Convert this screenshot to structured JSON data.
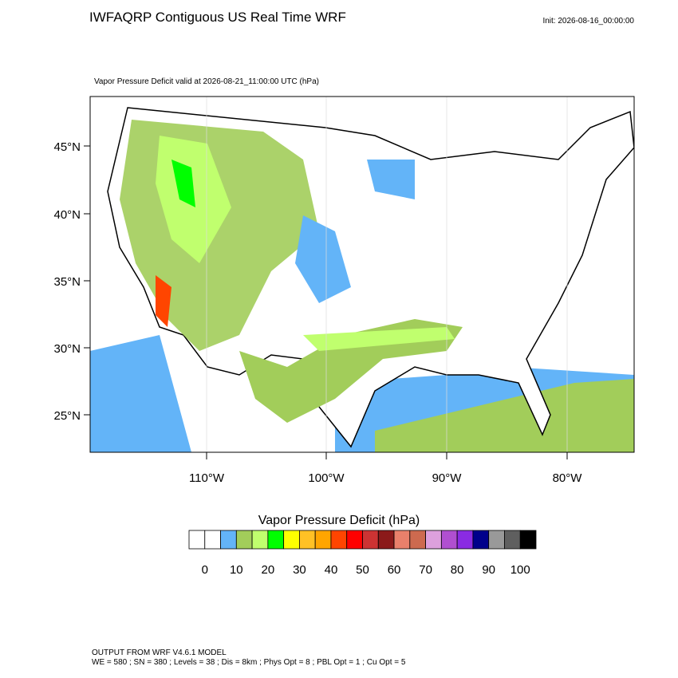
{
  "header": {
    "title": "IWFAQRP Contiguous US Real Time WRF",
    "init": "Init: 2026-08-16_00:00:00"
  },
  "map": {
    "subtitle": "Vapor Pressure Deficit valid at 2026-08-21_11:00:00 UTC   (hPa)",
    "lat_labels": [
      "45°N",
      "40°N",
      "35°N",
      "30°N",
      "25°N"
    ],
    "lon_labels": [
      "110°W",
      "100°W",
      "90°W",
      "80°W"
    ]
  },
  "colorbar": {
    "title": "Vapor Pressure Deficit  (hPa)",
    "colors": [
      "#ffffff",
      "#ffffff",
      "#63b4f8",
      "#a2cd5a",
      "#c0ff6e",
      "#00ff00",
      "#ffff00",
      "#ffc125",
      "#ffa500",
      "#ff4500",
      "#ff0000",
      "#cd3333",
      "#8b1a1a",
      "#e9806b",
      "#cd6a4f",
      "#dda0dd",
      "#b04fd0",
      "#8a2be2",
      "#00008b",
      "#999999",
      "#5f5f5f",
      "#000000"
    ],
    "labels": [
      0,
      10,
      20,
      30,
      40,
      50,
      60,
      70,
      80,
      90,
      100
    ]
  },
  "footer": {
    "line1": "OUTPUT FROM WRF V4.6.1 MODEL",
    "line2": "WE = 580 ; SN = 380 ; Levels = 38 ; Dis = 8km ; Phys Opt = 8 ; PBL Opt = 1 ; Cu Opt = 5"
  }
}
